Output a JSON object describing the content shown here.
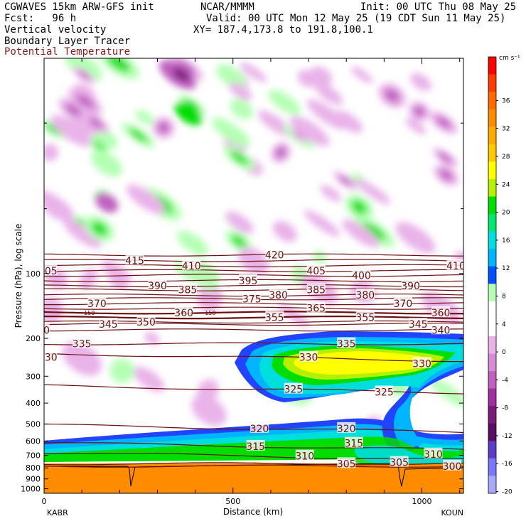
{
  "header": {
    "model": "CGWAVES 15km ARW-GFS init",
    "center": "NCAR/MMMM",
    "init": "Init: 00 UTC Thu 08 May 25",
    "fcst": "Fcst:   96 h",
    "valid": "Valid: 00 UTC Mon 12 May 25 (19 CDT Sun 11 May 25)",
    "field1": "Vertical velocity",
    "xy": "XY= 187.4,173.8 to 191.8,100.1",
    "field2": "Boundary Layer Tracer",
    "field3": "Potential Temperature"
  },
  "colors": {
    "theta": "#6b0f0f",
    "terrain": "#ff8c00"
  },
  "chart_data": {
    "type": "heatmap",
    "xlabel": "Distance (km)",
    "ylabel": "Pressure (hPa), log scale",
    "xlim": [
      0,
      1110
    ],
    "ylim": [
      1050,
      10
    ],
    "x_ticks": [
      0,
      500,
      1000
    ],
    "y_ticks": [
      100,
      200,
      300,
      400,
      500,
      600,
      700,
      800,
      900,
      1000
    ],
    "left_endpoint": "KABR",
    "right_endpoint": "KOUN",
    "colorbar": {
      "unit": "cm s⁻¹",
      "labels": [
        36,
        32,
        28,
        24,
        20,
        16,
        12,
        8,
        4,
        0,
        -4,
        -8,
        -12,
        -16,
        -20
      ],
      "colors": [
        "#ff0000",
        "#ff3c00",
        "#ff6a00",
        "#ff8c00",
        "#ffa800",
        "#ffc800",
        "#ffff00",
        "#b4f000",
        "#00dd00",
        "#00e870",
        "#00dddd",
        "#00b4ff",
        "#0050ff",
        "#b4ffb4",
        "#ffffff",
        "#ffffff",
        "#e9b3e9",
        "#d68cd6",
        "#c060c0",
        "#a030a0",
        "#7a1a7a",
        "#5a0c64",
        "#5a3cc8",
        "#7878ff",
        "#a8a8ff"
      ]
    },
    "theta_contours": [
      {
        "value": 300,
        "p": 785
      },
      {
        "value": 305,
        "p": 765
      },
      {
        "value": 310,
        "p": 705
      },
      {
        "value": 315,
        "p": 635
      },
      {
        "value": 320,
        "p": 525
      },
      {
        "value": 325,
        "p": 345
      },
      {
        "value": 330,
        "p": 245
      },
      {
        "value": 335,
        "p": 212
      },
      {
        "value": 340,
        "p": 183
      },
      {
        "value": 345,
        "p": 172
      },
      {
        "value": 350,
        "p": 168
      },
      {
        "value": 355,
        "p": 160
      },
      {
        "value": 360,
        "p": 152
      },
      {
        "value": 365,
        "p": 145
      },
      {
        "value": 370,
        "p": 138
      },
      {
        "value": 375,
        "p": 131
      },
      {
        "value": 380,
        "p": 126
      },
      {
        "value": 385,
        "p": 119
      },
      {
        "value": 390,
        "p": 114
      },
      {
        "value": 395,
        "p": 108
      },
      {
        "value": 400,
        "p": 102
      },
      {
        "value": 405,
        "p": 97
      },
      {
        "value": 410,
        "p": 92
      },
      {
        "value": 415,
        "p": 87
      },
      {
        "value": 420,
        "p": 82
      }
    ],
    "theta_labels": [
      {
        "text": "405",
        "x": 10,
        "p": 97
      },
      {
        "text": "415",
        "x": 240,
        "p": 87
      },
      {
        "text": "410",
        "x": 390,
        "p": 92
      },
      {
        "text": "420",
        "x": 610,
        "p": 82
      },
      {
        "text": "405",
        "x": 720,
        "p": 97
      },
      {
        "text": "400",
        "x": 840,
        "p": 102
      },
      {
        "text": "410",
        "x": 1090,
        "p": 92
      },
      {
        "text": "415",
        "x": 1240,
        "p": 87
      },
      {
        "text": "390",
        "x": 300,
        "p": 114
      },
      {
        "text": "385",
        "x": 380,
        "p": 119
      },
      {
        "text": "395",
        "x": 540,
        "p": 108
      },
      {
        "text": "380",
        "x": 620,
        "p": 126
      },
      {
        "text": "385",
        "x": 720,
        "p": 119
      },
      {
        "text": "380",
        "x": 850,
        "p": 126
      },
      {
        "text": "390",
        "x": 970,
        "p": 114
      },
      {
        "text": "395",
        "x": 1140,
        "p": 108
      },
      {
        "text": "355",
        "x": -30,
        "p": 160
      },
      {
        "text": "370",
        "x": 140,
        "p": 138
      },
      {
        "text": "360",
        "x": 370,
        "p": 152
      },
      {
        "text": "375",
        "x": 550,
        "p": 131
      },
      {
        "text": "365",
        "x": 720,
        "p": 145
      },
      {
        "text": "370",
        "x": 950,
        "p": 138
      },
      {
        "text": "340",
        "x": -10,
        "p": 183
      },
      {
        "text": "345",
        "x": 170,
        "p": 172
      },
      {
        "text": "350",
        "x": 270,
        "p": 168
      },
      {
        "text": "355",
        "x": 610,
        "p": 160
      },
      {
        "text": "355",
        "x": 850,
        "p": 160
      },
      {
        "text": "360",
        "x": 1050,
        "p": 152
      },
      {
        "text": "335",
        "x": 100,
        "p": 212
      },
      {
        "text": "345",
        "x": 990,
        "p": 172
      },
      {
        "text": "340",
        "x": 1050,
        "p": 183
      },
      {
        "text": "330",
        "x": 10,
        "p": 245
      },
      {
        "text": "330",
        "x": 700,
        "p": 245
      },
      {
        "text": "335",
        "x": 800,
        "p": 212
      },
      {
        "text": "330",
        "x": 1000,
        "p": 262
      },
      {
        "text": "325",
        "x": 660,
        "p": 345
      },
      {
        "text": "325",
        "x": 900,
        "p": 355
      },
      {
        "text": "320",
        "x": 570,
        "p": 525
      },
      {
        "text": "320",
        "x": 800,
        "p": 525
      },
      {
        "text": "315",
        "x": 560,
        "p": 635
      },
      {
        "text": "315",
        "x": 820,
        "p": 615
      },
      {
        "text": "310",
        "x": 690,
        "p": 705
      },
      {
        "text": "310",
        "x": 1030,
        "p": 690
      },
      {
        "text": "305",
        "x": 800,
        "p": 765
      },
      {
        "text": "305",
        "x": 940,
        "p": 755
      },
      {
        "text": "300",
        "x": 1080,
        "p": 785
      }
    ],
    "small_labels": [
      {
        "text": "150",
        "x": 120,
        "p": 152
      },
      {
        "text": "150",
        "x": 440,
        "p": 152
      },
      {
        "text": "150",
        "x": 1120,
        "p": 152
      }
    ]
  }
}
